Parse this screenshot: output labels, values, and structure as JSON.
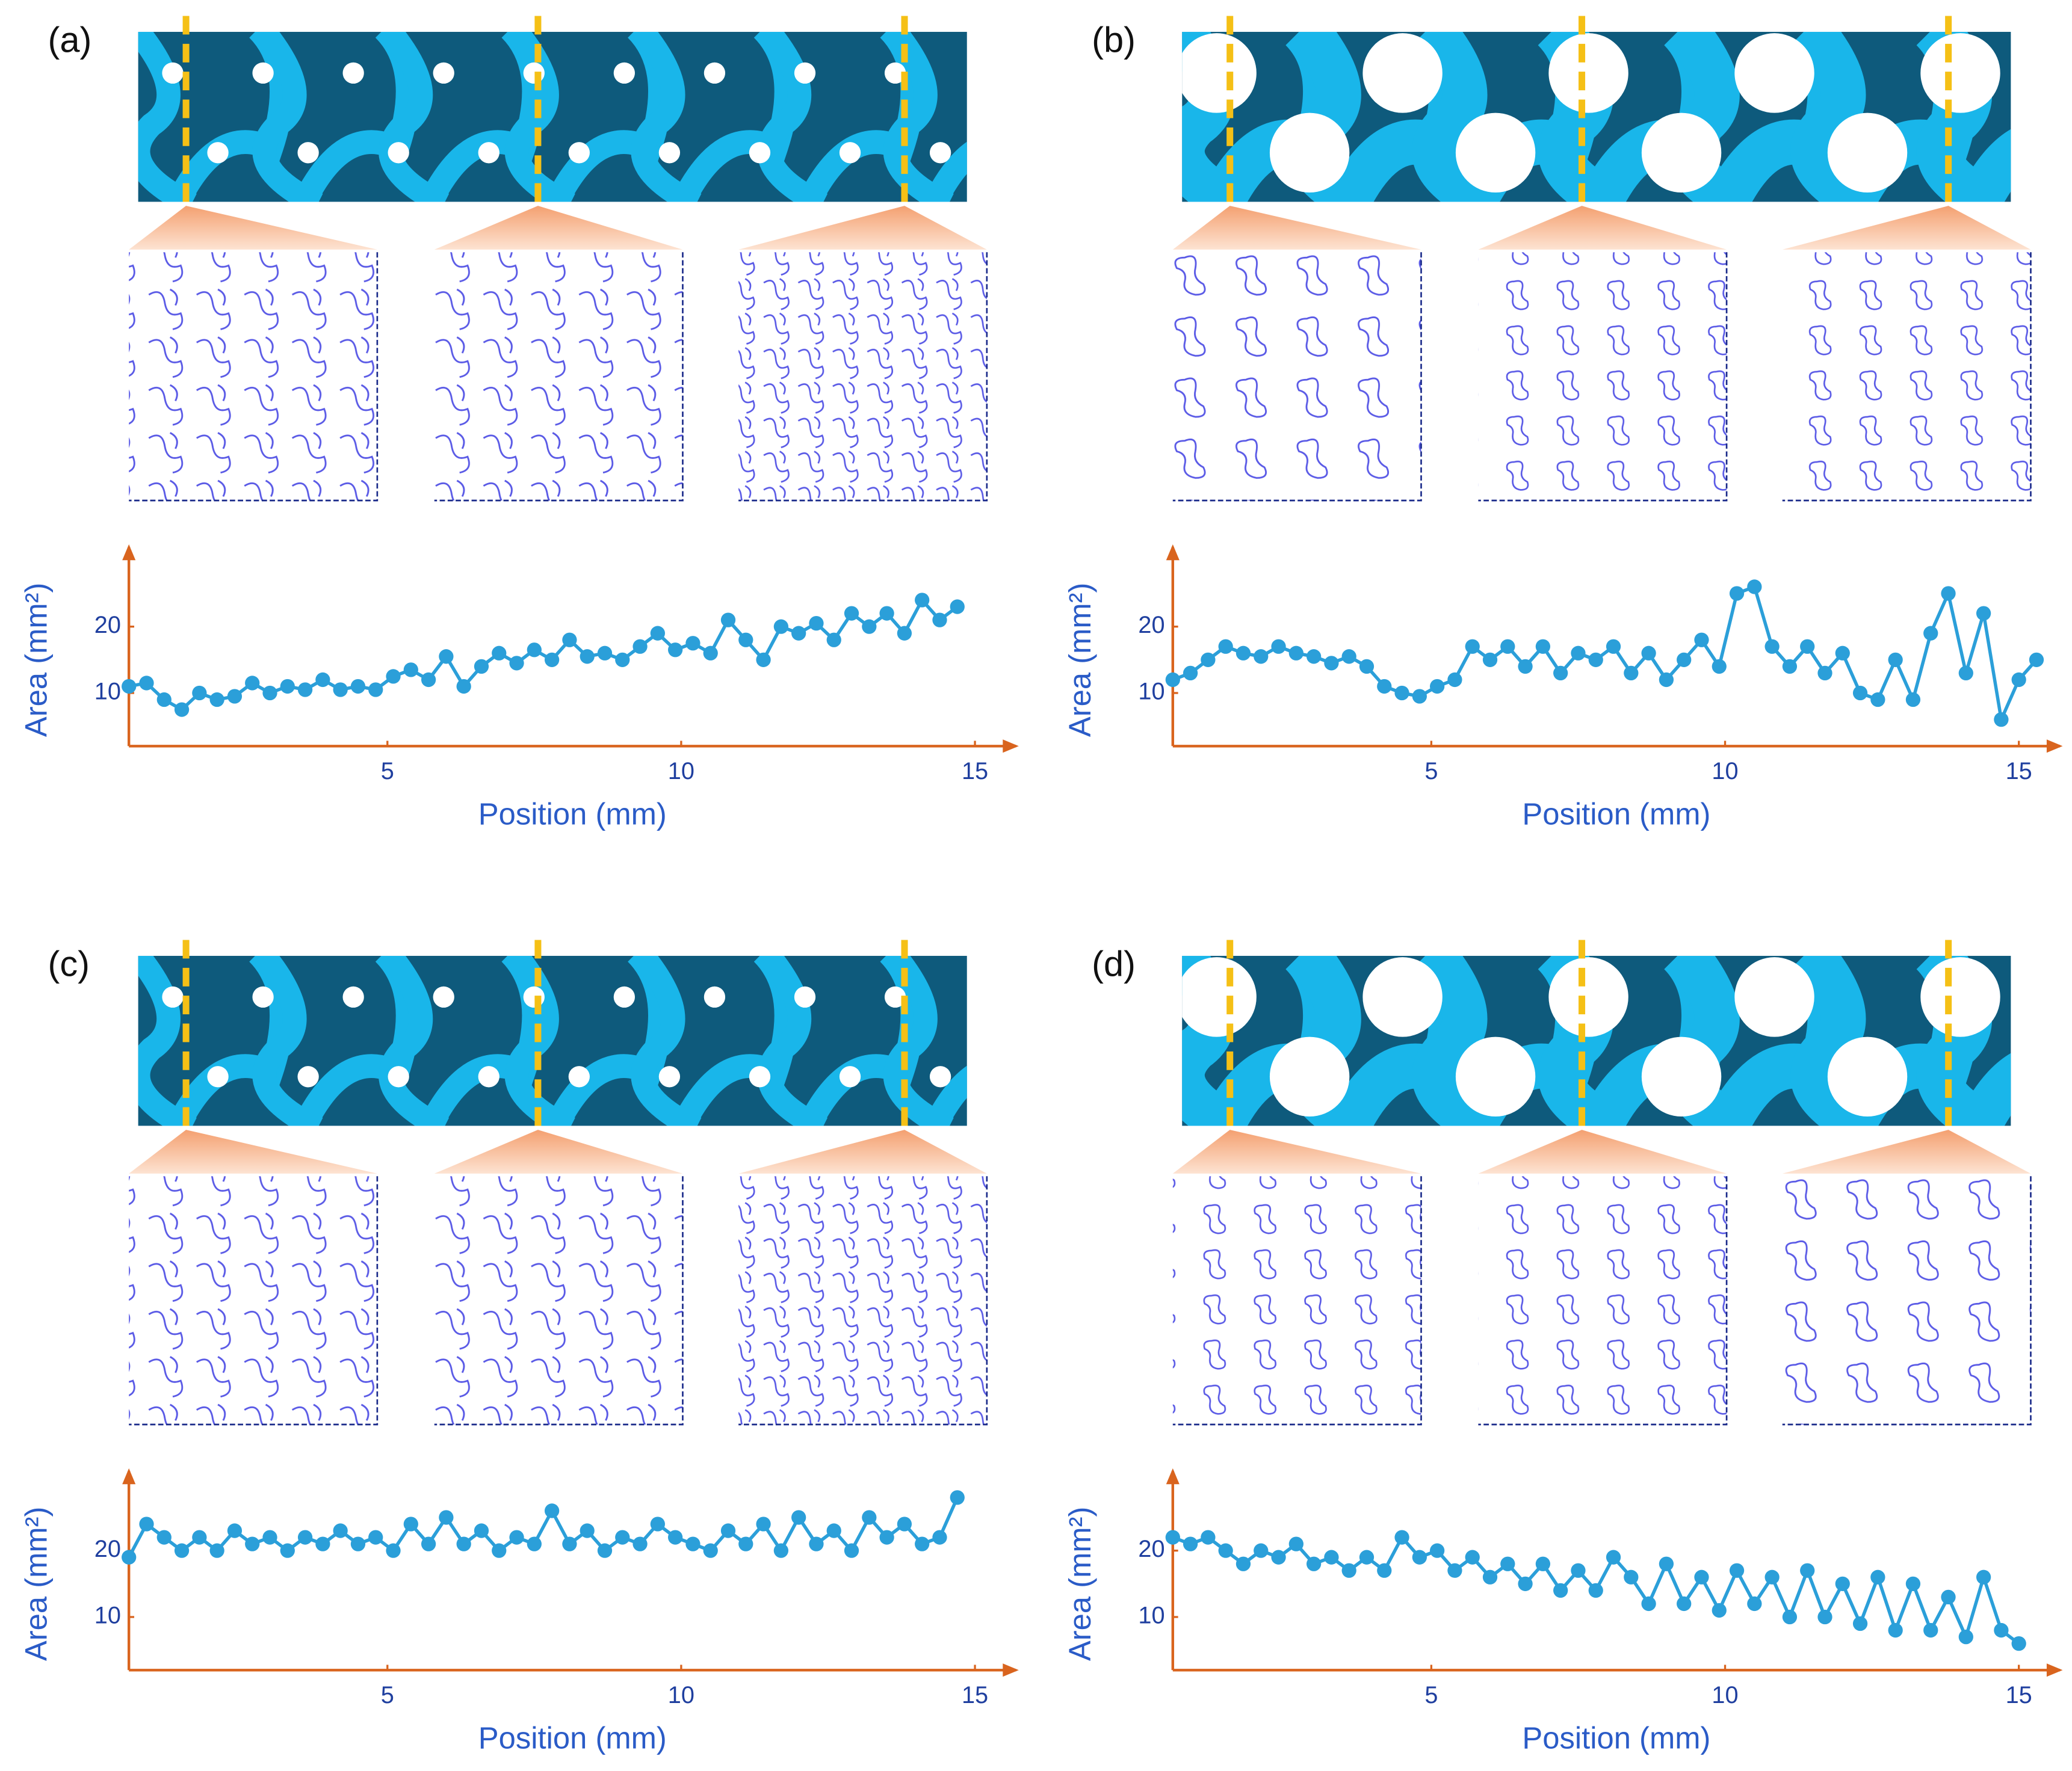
{
  "chart_data": [
    {
      "type": "line",
      "title": "(a)",
      "xlabel": "Position (mm)",
      "ylabel": "Area (mm²)",
      "color": "#2b9fd9",
      "x": [
        0.6,
        0.9,
        1.2,
        1.5,
        1.8,
        2.1,
        2.4,
        2.7,
        3.0,
        3.3,
        3.6,
        3.9,
        4.2,
        4.5,
        4.8,
        5.1,
        5.4,
        5.7,
        6.0,
        6.3,
        6.6,
        6.9,
        7.2,
        7.5,
        7.8,
        8.1,
        8.4,
        8.7,
        9.0,
        9.3,
        9.6,
        9.9,
        10.2,
        10.5,
        10.8,
        11.1,
        11.4,
        11.7,
        12.0,
        12.3,
        12.6,
        12.9,
        13.2,
        13.5,
        13.8,
        14.1,
        14.4,
        14.7
      ],
      "values": [
        11,
        11.5,
        9,
        7.5,
        10,
        9,
        9.5,
        11.5,
        10,
        11,
        10.5,
        12,
        10.5,
        11,
        10.5,
        12.5,
        13.5,
        12,
        15.5,
        11,
        14,
        16,
        14.5,
        16.5,
        15,
        18,
        15.5,
        16,
        15,
        17,
        19,
        16.5,
        17.5,
        16,
        21,
        18,
        15,
        20,
        19,
        20.5,
        18,
        22,
        20,
        22,
        19,
        24,
        21,
        23
      ],
      "xlim": [
        0.6,
        15.7
      ],
      "ylim": [
        2,
        32
      ],
      "xticks": [
        5,
        10,
        15
      ],
      "yticks": [
        10,
        20
      ]
    },
    {
      "type": "line",
      "title": "(b)",
      "xlabel": "Position (mm)",
      "ylabel": "Area (mm²)",
      "color": "#2b9fd9",
      "x": [
        0.6,
        0.9,
        1.2,
        1.5,
        1.8,
        2.1,
        2.4,
        2.7,
        3.0,
        3.3,
        3.6,
        3.9,
        4.2,
        4.5,
        4.8,
        5.1,
        5.4,
        5.7,
        6.0,
        6.3,
        6.6,
        6.9,
        7.2,
        7.5,
        7.8,
        8.1,
        8.4,
        8.7,
        9.0,
        9.3,
        9.6,
        9.9,
        10.2,
        10.5,
        10.8,
        11.1,
        11.4,
        11.7,
        12.0,
        12.3,
        12.6,
        12.9,
        13.2,
        13.5,
        13.8,
        14.1,
        14.4,
        14.7,
        15.0,
        15.3
      ],
      "values": [
        12,
        13,
        15,
        17,
        16,
        15.5,
        17,
        16,
        15.5,
        14.5,
        15.5,
        14,
        11,
        10,
        9.5,
        11,
        12,
        17,
        15,
        17,
        14,
        17,
        13,
        16,
        15,
        17,
        13,
        16,
        12,
        15,
        18,
        14,
        25,
        26,
        17,
        14,
        17,
        13,
        16,
        10,
        9,
        15,
        9,
        19,
        25,
        13,
        22,
        6,
        12,
        15
      ],
      "xlim": [
        0.6,
        15.7
      ],
      "ylim": [
        2,
        32
      ],
      "xticks": [
        5,
        10,
        15
      ],
      "yticks": [
        10,
        20
      ]
    },
    {
      "type": "line",
      "title": "(c)",
      "xlabel": "Position (mm)",
      "ylabel": "Area (mm²)",
      "color": "#2b9fd9",
      "x": [
        0.6,
        0.9,
        1.2,
        1.5,
        1.8,
        2.1,
        2.4,
        2.7,
        3.0,
        3.3,
        3.6,
        3.9,
        4.2,
        4.5,
        4.8,
        5.1,
        5.4,
        5.7,
        6.0,
        6.3,
        6.6,
        6.9,
        7.2,
        7.5,
        7.8,
        8.1,
        8.4,
        8.7,
        9.0,
        9.3,
        9.6,
        9.9,
        10.2,
        10.5,
        10.8,
        11.1,
        11.4,
        11.7,
        12.0,
        12.3,
        12.6,
        12.9,
        13.2,
        13.5,
        13.8,
        14.1,
        14.4,
        14.7
      ],
      "values": [
        19,
        24,
        22,
        20,
        22,
        20,
        23,
        21,
        22,
        20,
        22,
        21,
        23,
        21,
        22,
        20,
        24,
        21,
        25,
        21,
        23,
        20,
        22,
        21,
        26,
        21,
        23,
        20,
        22,
        21,
        24,
        22,
        21,
        20,
        23,
        21,
        24,
        20,
        25,
        21,
        23,
        20,
        25,
        22,
        24,
        21,
        22,
        28
      ],
      "xlim": [
        0.6,
        15.7
      ],
      "ylim": [
        2,
        32
      ],
      "xticks": [
        5,
        10,
        15
      ],
      "yticks": [
        10,
        20
      ]
    },
    {
      "type": "line",
      "title": "(d)",
      "xlabel": "Position (mm)",
      "ylabel": "Area (mm²)",
      "color": "#2b9fd9",
      "x": [
        0.6,
        0.9,
        1.2,
        1.5,
        1.8,
        2.1,
        2.4,
        2.7,
        3.0,
        3.3,
        3.6,
        3.9,
        4.2,
        4.5,
        4.8,
        5.1,
        5.4,
        5.7,
        6.0,
        6.3,
        6.6,
        6.9,
        7.2,
        7.5,
        7.8,
        8.1,
        8.4,
        8.7,
        9.0,
        9.3,
        9.6,
        9.9,
        10.2,
        10.5,
        10.8,
        11.1,
        11.4,
        11.7,
        12.0,
        12.3,
        12.6,
        12.9,
        13.2,
        13.5,
        13.8,
        14.1,
        14.4,
        14.7,
        15.0
      ],
      "values": [
        22,
        21,
        22,
        20,
        18,
        20,
        19,
        21,
        18,
        19,
        17,
        19,
        17,
        22,
        19,
        20,
        17,
        19,
        16,
        18,
        15,
        18,
        14,
        17,
        14,
        19,
        16,
        12,
        18,
        12,
        16,
        11,
        17,
        12,
        16,
        10,
        17,
        10,
        15,
        9,
        16,
        8,
        15,
        8,
        13,
        7,
        16,
        8,
        6
      ],
      "xlim": [
        0.6,
        15.7
      ],
      "ylim": [
        2,
        32
      ],
      "xticks": [
        5,
        10,
        15
      ],
      "yticks": [
        10,
        20
      ]
    }
  ]
}
